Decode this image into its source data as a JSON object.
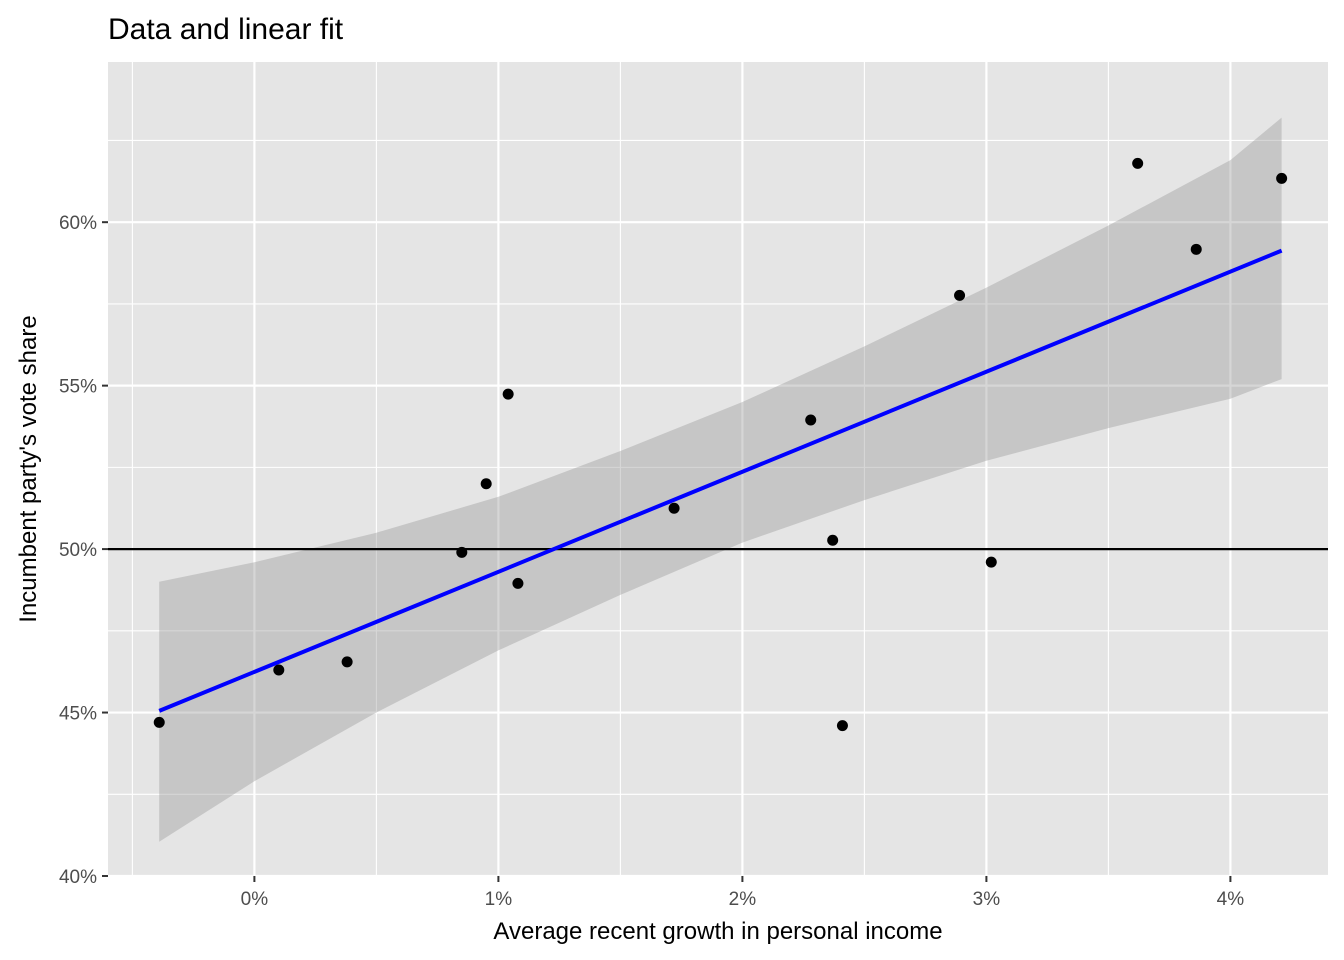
{
  "chart_data": {
    "type": "scatter",
    "title": "Data and linear fit",
    "xlabel": "Average recent growth in personal income",
    "ylabel": "Incumbent party's vote share",
    "xlim": [
      -0.6,
      4.4
    ],
    "ylim": [
      40,
      64.9
    ],
    "x_ticks": [
      0,
      1,
      2,
      3,
      4
    ],
    "x_tick_labels": [
      "0%",
      "1%",
      "2%",
      "3%",
      "4%"
    ],
    "y_ticks": [
      40,
      45,
      50,
      55,
      60
    ],
    "y_tick_labels": [
      "40%",
      "45%",
      "50%",
      "55%",
      "60%"
    ],
    "grid": true,
    "reference_line_y": 50,
    "points": [
      {
        "x": -0.39,
        "y": 44.7
      },
      {
        "x": 0.1,
        "y": 46.3
      },
      {
        "x": 0.38,
        "y": 46.55
      },
      {
        "x": 0.85,
        "y": 49.9
      },
      {
        "x": 0.95,
        "y": 52.0
      },
      {
        "x": 1.04,
        "y": 54.74
      },
      {
        "x": 1.08,
        "y": 48.95
      },
      {
        "x": 1.72,
        "y": 51.25
      },
      {
        "x": 2.28,
        "y": 53.95
      },
      {
        "x": 2.37,
        "y": 50.27
      },
      {
        "x": 2.41,
        "y": 44.6
      },
      {
        "x": 2.89,
        "y": 57.76
      },
      {
        "x": 3.02,
        "y": 49.6
      },
      {
        "x": 3.62,
        "y": 61.8
      },
      {
        "x": 3.86,
        "y": 59.17
      },
      {
        "x": 4.21,
        "y": 61.34
      }
    ],
    "fit_line": {
      "x": [
        -0.39,
        4.21
      ],
      "y": [
        45.05,
        59.13
      ]
    },
    "confidence_band": {
      "x": [
        -0.39,
        0.0,
        0.5,
        1.0,
        1.5,
        2.0,
        2.5,
        3.0,
        3.5,
        4.0,
        4.21
      ],
      "upper": [
        49.0,
        49.6,
        50.5,
        51.6,
        53.0,
        54.5,
        56.2,
        58.0,
        59.9,
        61.9,
        63.2
      ],
      "lower": [
        41.05,
        42.9,
        45.0,
        46.9,
        48.6,
        50.2,
        51.5,
        52.7,
        53.7,
        54.6,
        55.2
      ]
    },
    "colors": {
      "panel": "#e5e5e5",
      "grid": "#ffffff",
      "points": "#000000",
      "fit_line": "#0000ff",
      "band": "#999999",
      "reference_line": "#000000"
    }
  }
}
